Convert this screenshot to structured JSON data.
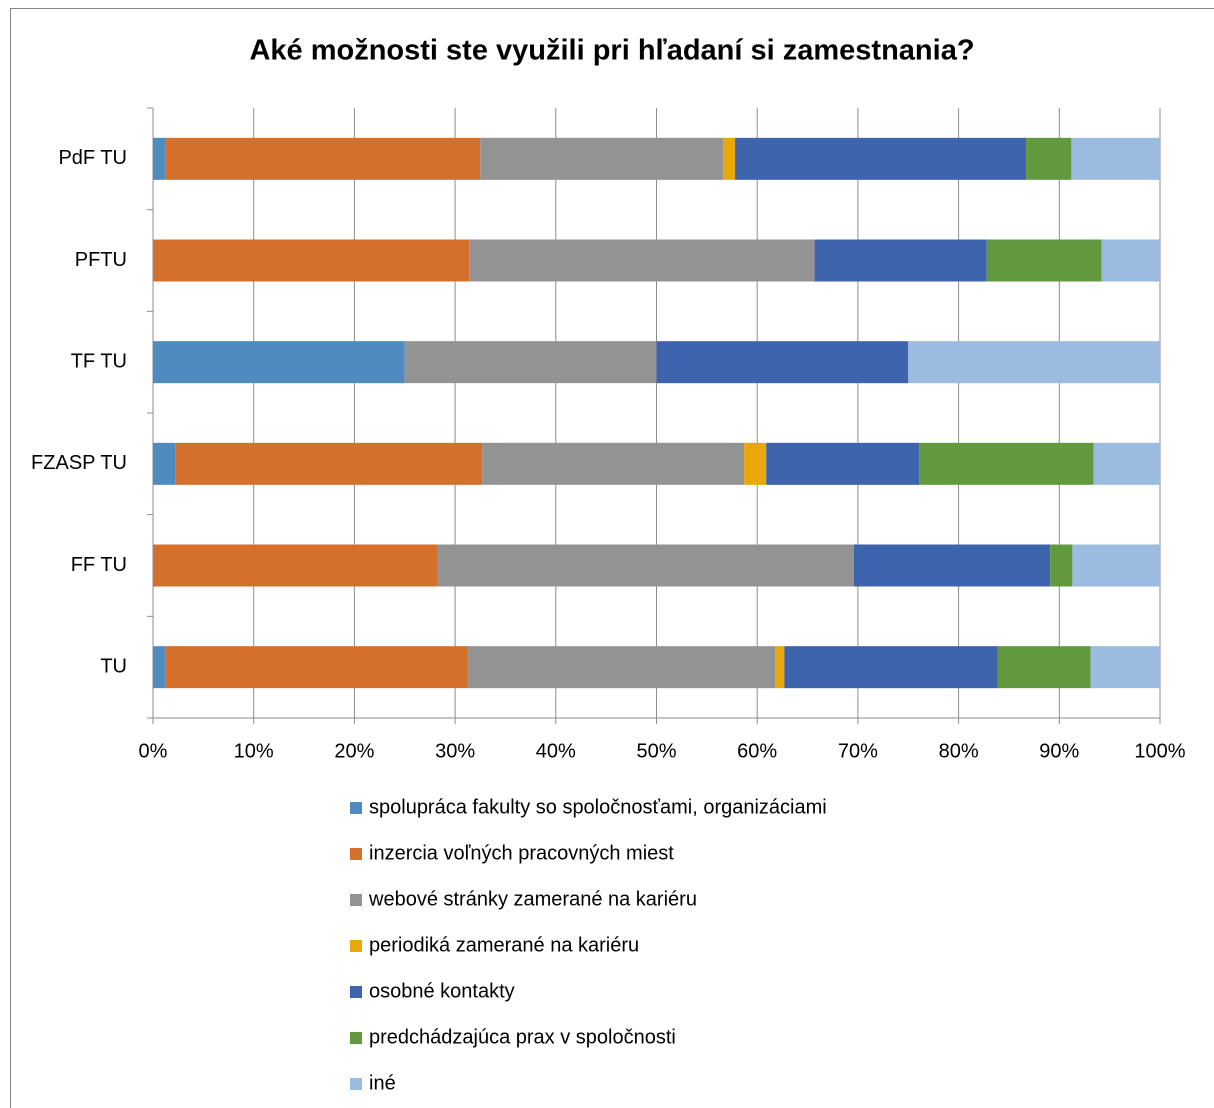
{
  "chart_data": {
    "type": "bar",
    "orientation": "horizontal",
    "stacked": true,
    "title": "Aké možnosti ste využili pri hľadaní si zamestnania?",
    "categories": [
      "PdF TU",
      "PFTU",
      "TF TU",
      "FZASP TU",
      "FF TU",
      "TU"
    ],
    "series": [
      {
        "name": "spolupráca fakulty so spoločnosťami, organizáciami",
        "color": "#4f8ac0",
        "values": [
          1.2,
          0,
          25,
          2.2,
          0,
          1.2
        ]
      },
      {
        "name": "inzercia voľných pracovných miest",
        "color": "#d4702c",
        "values": [
          31.3,
          31.4,
          0,
          30.5,
          28.2,
          30.1
        ]
      },
      {
        "name": "webové stránky zamerané na kariéru",
        "color": "#939393",
        "values": [
          24.1,
          34.3,
          25,
          26.0,
          41.4,
          30.5
        ]
      },
      {
        "name": "periodiká zamerané na kariéru",
        "color": "#e8a70b",
        "values": [
          1.2,
          0,
          0,
          2.2,
          0,
          0.9
        ]
      },
      {
        "name": "osobné kontakty",
        "color": "#3f64ae",
        "values": [
          28.9,
          17.1,
          25,
          15.2,
          19.5,
          21.2
        ]
      },
      {
        "name": "predchádzajúca prax v spoločnosti",
        "color": "#62993e",
        "values": [
          4.5,
          11.4,
          0,
          17.3,
          2.2,
          9.2
        ]
      },
      {
        "name": "iné",
        "color": "#9bbbe0",
        "values": [
          8.8,
          5.8,
          25,
          6.6,
          8.7,
          6.9
        ]
      }
    ],
    "xlim": [
      0,
      100
    ],
    "xticks": [
      {
        "value": 0,
        "label": "0%"
      },
      {
        "value": 10,
        "label": "10%"
      },
      {
        "value": 20,
        "label": "20%"
      },
      {
        "value": 30,
        "label": "30%"
      },
      {
        "value": 40,
        "label": "40%"
      },
      {
        "value": 50,
        "label": "50%"
      },
      {
        "value": 60,
        "label": "60%"
      },
      {
        "value": 70,
        "label": "70%"
      },
      {
        "value": 80,
        "label": "80%"
      },
      {
        "value": 90,
        "label": "90%"
      },
      {
        "value": 100,
        "label": "100%"
      }
    ],
    "grid": true,
    "legend": "bottom"
  }
}
